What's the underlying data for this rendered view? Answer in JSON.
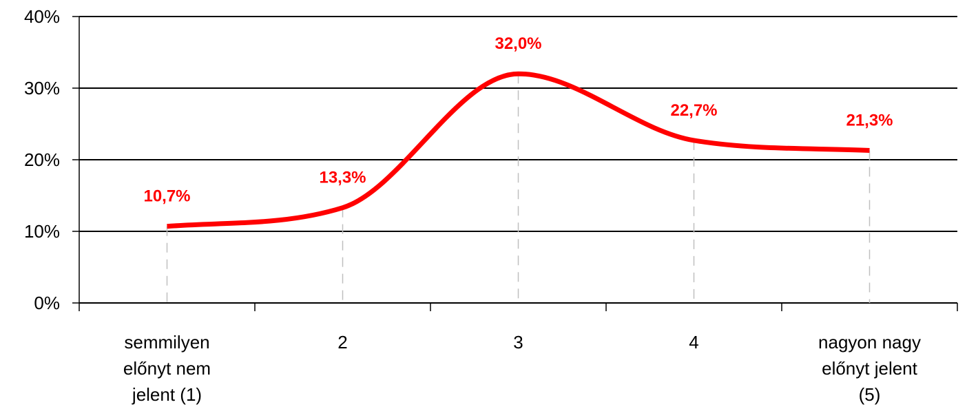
{
  "chart_data": {
    "type": "line",
    "categories": [
      [
        "semmilyen",
        "előnyt nem",
        "jelent (1)"
      ],
      [
        "2"
      ],
      [
        "3"
      ],
      [
        "4"
      ],
      [
        "nagyon nagy",
        "előnyt jelent",
        "(5)"
      ]
    ],
    "values": [
      10.7,
      13.3,
      32.0,
      22.7,
      21.3
    ],
    "data_labels": [
      "10,7%",
      "13,3%",
      "32,0%",
      "22,7%",
      "21,3%"
    ],
    "y_ticks": [
      "0%",
      "10%",
      "20%",
      "30%",
      "40%"
    ],
    "ylim": [
      0,
      40
    ],
    "y_unit": "%",
    "smoothed": true,
    "grid": true,
    "legend": "none",
    "line_color": "#ff0000",
    "label_color": "#ff0000",
    "grid_color": "#000000",
    "guide_color": "#bfbfbf"
  }
}
